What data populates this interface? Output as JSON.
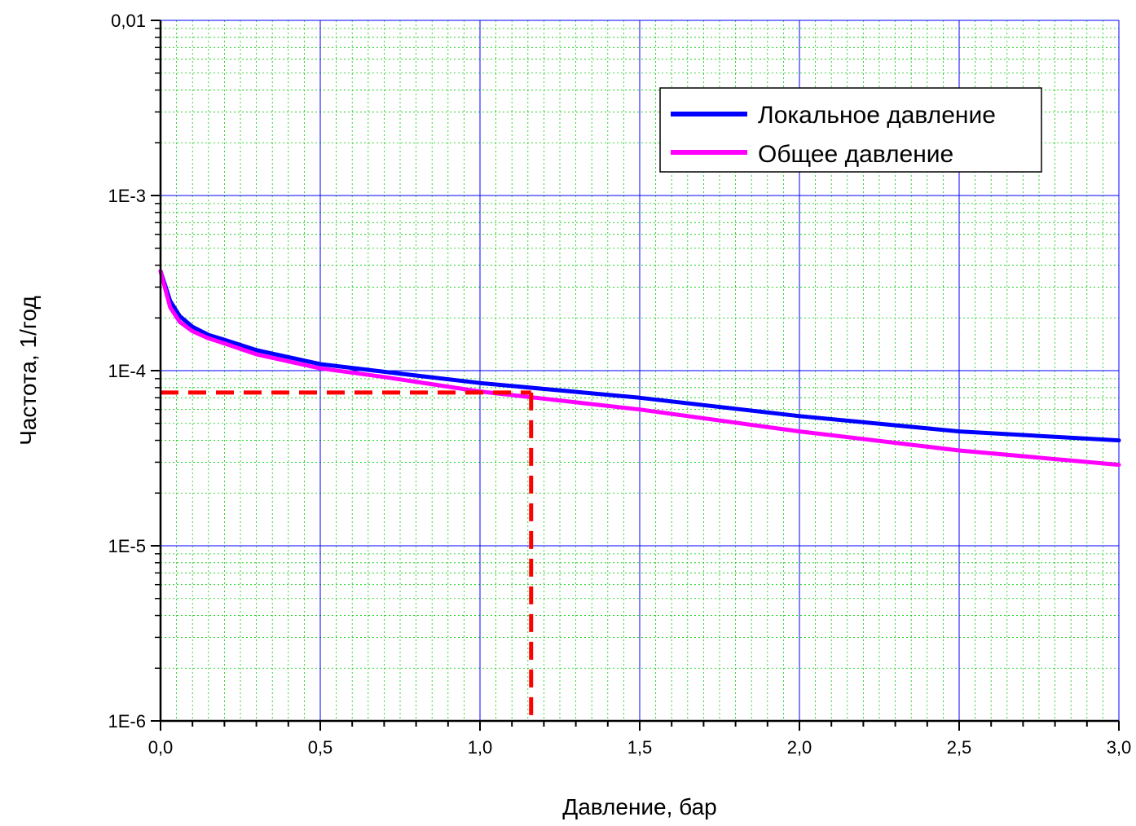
{
  "chart_data": {
    "type": "line",
    "xlabel": "Давление, бар",
    "ylabel": "Частота,  1/год",
    "xlim": [
      0,
      3
    ],
    "ylim": [
      1e-06,
      0.01
    ],
    "yscale": "log",
    "grid": true,
    "legend_position": "top-right",
    "x_ticks": [
      {
        "value": 0.0,
        "label": "0,0"
      },
      {
        "value": 0.5,
        "label": "0,5"
      },
      {
        "value": 1.0,
        "label": "1,0"
      },
      {
        "value": 1.5,
        "label": "1,5"
      },
      {
        "value": 2.0,
        "label": "2,0"
      },
      {
        "value": 2.5,
        "label": "2,5"
      },
      {
        "value": 3.0,
        "label": "3,0"
      }
    ],
    "y_ticks": [
      {
        "value": 1e-06,
        "label": "1E-6"
      },
      {
        "value": 1e-05,
        "label": "1E-5"
      },
      {
        "value": 0.0001,
        "label": "1E-4"
      },
      {
        "value": 0.001,
        "label": "1E-3"
      },
      {
        "value": 0.01,
        "label": "0,01"
      }
    ],
    "series": [
      {
        "name": "Локальное давление",
        "color": "#0000ff",
        "x": [
          0.0,
          0.03,
          0.06,
          0.1,
          0.15,
          0.2,
          0.3,
          0.5,
          0.7,
          1.0,
          1.5,
          2.0,
          2.5,
          3.0
        ],
        "y": [
          0.00037,
          0.00025,
          0.000205,
          0.000178,
          0.00016,
          0.00015,
          0.000131,
          0.000109,
          9.85e-05,
          8.5e-05,
          7e-05,
          5.5e-05,
          4.5e-05,
          4e-05
        ]
      },
      {
        "name": "Общее давление",
        "color": "#ff00ff",
        "x": [
          0.0,
          0.03,
          0.06,
          0.1,
          0.15,
          0.2,
          0.3,
          0.5,
          0.7,
          1.0,
          1.5,
          2.0,
          2.5,
          3.0
        ],
        "y": [
          0.00037,
          0.00023,
          0.00019,
          0.000168,
          0.000153,
          0.000143,
          0.000124,
          0.000103,
          9.2e-05,
          7.6e-05,
          6e-05,
          4.5e-05,
          3.5e-05,
          2.9e-05
        ]
      }
    ],
    "annotations": [
      {
        "type": "reference-line",
        "color": "#ff0000",
        "x": 1.16,
        "y": 7.5e-05
      }
    ]
  }
}
